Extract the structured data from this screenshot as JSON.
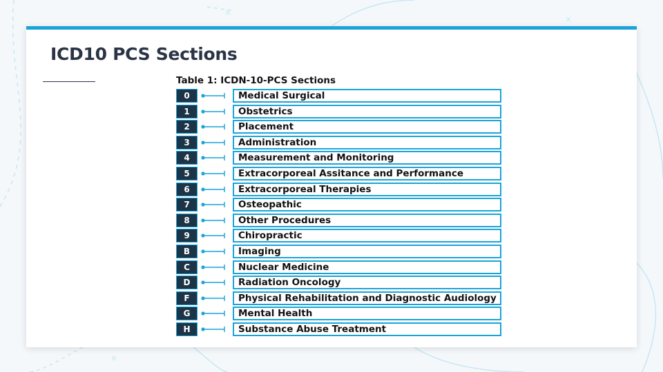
{
  "slide": {
    "title": "ICD10 PCS Sections"
  },
  "table": {
    "caption": "Table 1: ICDN-10-PCS Sections",
    "rows": [
      {
        "code": "0",
        "label": "Medical Surgical"
      },
      {
        "code": "1",
        "label": "Obstetrics"
      },
      {
        "code": "2",
        "label": "Placement"
      },
      {
        "code": "3",
        "label": "Administration"
      },
      {
        "code": "4",
        "label": "Measurement and Monitoring"
      },
      {
        "code": "5",
        "label": "Extracorporeal Assitance and Performance"
      },
      {
        "code": "6",
        "label": "Extracorporeal Therapies"
      },
      {
        "code": "7",
        "label": "Osteopathic"
      },
      {
        "code": "8",
        "label": "Other Procedures"
      },
      {
        "code": "9",
        "label": "Chiropractic"
      },
      {
        "code": "B",
        "label": "Imaging"
      },
      {
        "code": "C",
        "label": "Nuclear Medicine"
      },
      {
        "code": "D",
        "label": "Radiation Oncology"
      },
      {
        "code": "F",
        "label": "Physical Rehabilitation and Diagnostic Audiology"
      },
      {
        "code": "G",
        "label": "Mental Health"
      },
      {
        "code": "H",
        "label": "Substance Abuse Treatment"
      }
    ]
  },
  "colors": {
    "accent": "#1aa3d9",
    "code_fill": "#1d3447",
    "title_text": "#2b3445"
  }
}
